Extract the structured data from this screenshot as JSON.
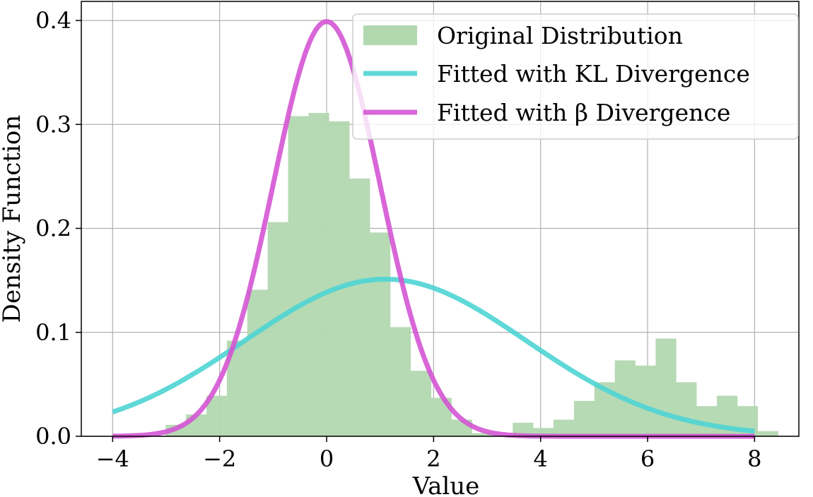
{
  "chart_data": {
    "type": "bar",
    "title": "",
    "xlabel": "Value",
    "ylabel": "Density Function",
    "xlim": [
      -4.75,
      8.65
    ],
    "ylim": [
      0.0,
      0.418
    ],
    "xticks": [
      -4,
      -2,
      0,
      2,
      4,
      6,
      8
    ],
    "xtick_labels": [
      "−4",
      "−2",
      "0",
      "2",
      "4",
      "6",
      "8"
    ],
    "yticks": [
      0.0,
      0.1,
      0.2,
      0.3,
      0.4
    ],
    "ytick_labels": [
      "0.0",
      "0.1",
      "0.2",
      "0.3",
      "0.4"
    ],
    "grid": true,
    "legend_position": "top-right",
    "histogram": {
      "name": "Original Distribution",
      "color": "#b2d8b0",
      "bin_start": -3.01,
      "bin_width": 0.3817,
      "values": [
        0.011,
        0.021,
        0.039,
        0.092,
        0.141,
        0.206,
        0.308,
        0.311,
        0.303,
        0.248,
        0.196,
        0.105,
        0.063,
        0.037,
        0.016,
        0.003,
        0.0,
        0.013,
        0.008,
        0.016,
        0.034,
        0.052,
        0.073,
        0.068,
        0.094,
        0.052,
        0.029,
        0.039,
        0.029,
        0.005
      ]
    },
    "series": [
      {
        "name": "Fitted with KL Divergence",
        "type": "line",
        "color": "#4fd4d4",
        "distribution": "normal",
        "mean": 1.1,
        "std": 2.64,
        "x_range": [
          -4,
          8
        ]
      },
      {
        "name": "Fitted with β Divergence",
        "type": "line",
        "color": "#d455d4",
        "distribution": "normal",
        "mean": 0.0,
        "std": 1.0,
        "x_range": [
          -4,
          8
        ]
      }
    ],
    "legend": [
      "Original Distribution",
      "Fitted with KL Divergence",
      "Fitted with β Divergence"
    ]
  }
}
